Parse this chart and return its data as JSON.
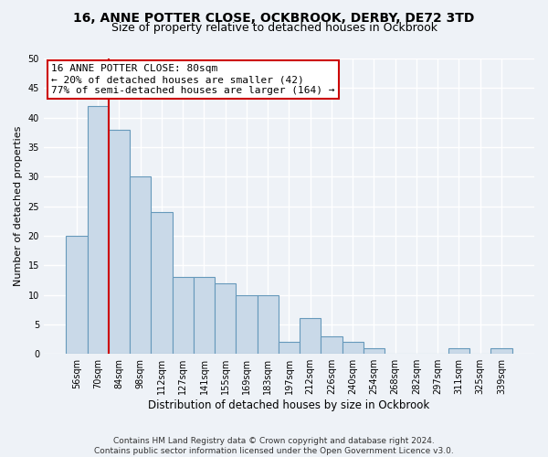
{
  "title1": "16, ANNE POTTER CLOSE, OCKBROOK, DERBY, DE72 3TD",
  "title2": "Size of property relative to detached houses in Ockbrook",
  "xlabel": "Distribution of detached houses by size in Ockbrook",
  "ylabel": "Number of detached properties",
  "categories": [
    "56sqm",
    "70sqm",
    "84sqm",
    "98sqm",
    "112sqm",
    "127sqm",
    "141sqm",
    "155sqm",
    "169sqm",
    "183sqm",
    "197sqm",
    "212sqm",
    "226sqm",
    "240sqm",
    "254sqm",
    "268sqm",
    "282sqm",
    "297sqm",
    "311sqm",
    "325sqm",
    "339sqm"
  ],
  "values": [
    20,
    42,
    38,
    30,
    24,
    13,
    13,
    12,
    10,
    10,
    2,
    6,
    3,
    2,
    1,
    0,
    0,
    0,
    1,
    0,
    1
  ],
  "bar_color": "#c9d9e8",
  "bar_edge_color": "#6699bb",
  "vline_x": 1.5,
  "vline_color": "#cc0000",
  "annotation_text": "16 ANNE POTTER CLOSE: 80sqm\n← 20% of detached houses are smaller (42)\n77% of semi-detached houses are larger (164) →",
  "annotation_box_color": "#ffffff",
  "annotation_box_edge": "#cc0000",
  "ylim": [
    0,
    50
  ],
  "yticks": [
    0,
    5,
    10,
    15,
    20,
    25,
    30,
    35,
    40,
    45,
    50
  ],
  "footer": "Contains HM Land Registry data © Crown copyright and database right 2024.\nContains public sector information licensed under the Open Government Licence v3.0.",
  "bg_color": "#eef2f7",
  "grid_color": "#ffffff",
  "title_fontsize": 10,
  "subtitle_fontsize": 9,
  "annotation_fontsize": 8,
  "footer_fontsize": 6.5,
  "ylabel_fontsize": 8,
  "xlabel_fontsize": 8.5,
  "tick_fontsize": 7
}
